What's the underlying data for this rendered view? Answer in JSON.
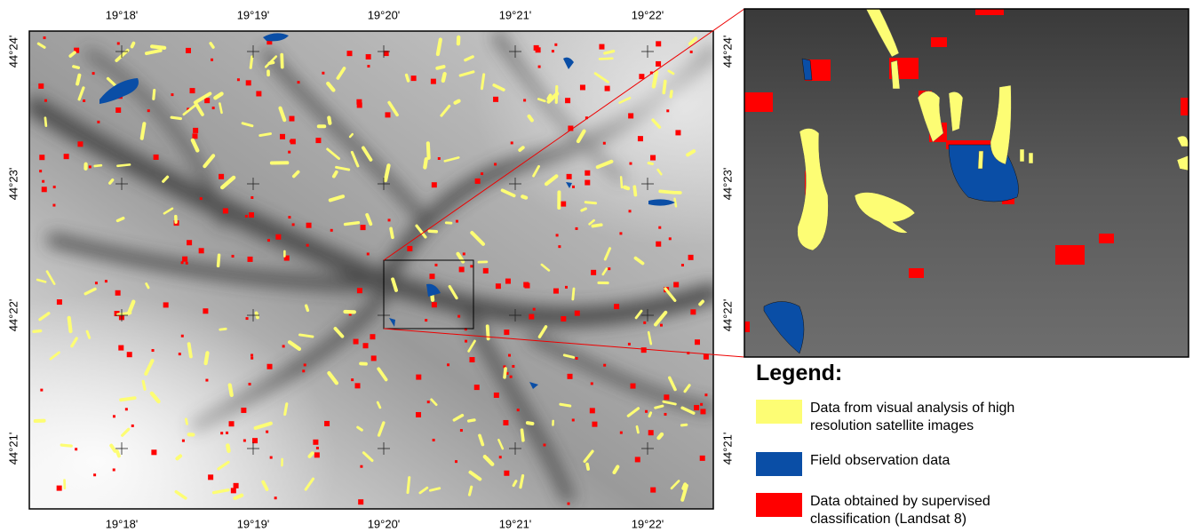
{
  "map": {
    "top_labels": [
      "19°18'",
      "19°19'",
      "19°20'",
      "19°21'",
      "19°22'"
    ],
    "bottom_labels": [
      "19°18'",
      "19°19'",
      "19°20'",
      "19°21'",
      "19°22'"
    ],
    "left_labels": [
      "44°24'",
      "44°23'",
      "44°22'",
      "44°21'"
    ],
    "right_labels": [
      "44°24'",
      "44°23'",
      "44°22'",
      "44°21'"
    ]
  },
  "legend": {
    "title": "Legend:",
    "items": [
      {
        "label": "Data from visual analysis of high resolution satellite images",
        "color": "#fdfd74"
      },
      {
        "label": "Field observation data",
        "color": "#0a4ea6"
      },
      {
        "label": "Data obtained by supervised classification (Landsat 8)",
        "color": "#ff0000"
      }
    ]
  }
}
